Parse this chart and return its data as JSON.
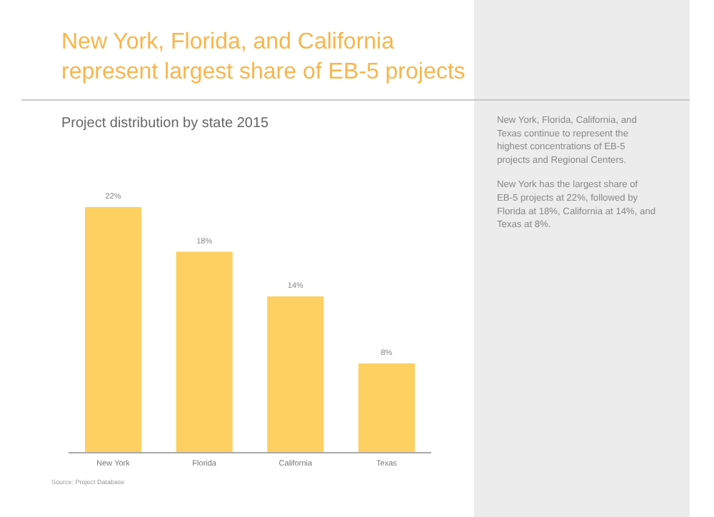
{
  "chart_data": {
    "type": "bar",
    "title": "New York, Florida, and California represent largest share of EB-5 projects",
    "subtitle": "Project distribution by state 2015",
    "categories": [
      "New York",
      "Florida",
      "California",
      "Texas"
    ],
    "values": [
      22,
      18,
      14,
      8
    ],
    "color": "#fdd061",
    "value_labels": [
      "22%",
      "18%",
      "14%",
      "8%"
    ],
    "annotations": [
      "New York, Florida, California, and Texas continue to represent the highest concentrations of EB-5 projects and Regional Centers.",
      "New York has the largest share of EB-5 projects at 22%, followed by Florida at 18%, California at 14%, and Texas at 8%.",
      "Source: Project Database"
    ]
  }
}
